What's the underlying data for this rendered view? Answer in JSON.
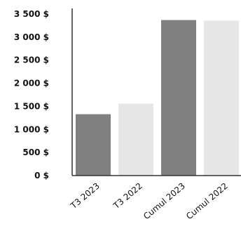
{
  "chart_data": {
    "type": "bar",
    "categories": [
      "T3 2023",
      "T3 2022",
      "Cumul 2023",
      "Cumul 2022"
    ],
    "values": [
      1330,
      1560,
      3370,
      3360
    ],
    "bar_colors": [
      "#808080",
      "#e6e6e6",
      "#808080",
      "#e6e6e6"
    ],
    "y_ticks": [
      0,
      500,
      1000,
      1500,
      2000,
      2500,
      3000,
      3500
    ],
    "y_tick_labels": [
      "0 $",
      "500 $",
      "1 000 $",
      "1 500 $",
      "2 000 $",
      "2 500 $",
      "3 000 $",
      "3 500 $"
    ],
    "ylim": [
      0,
      3500
    ],
    "title": "",
    "xlabel": "",
    "ylabel": "",
    "grid": false,
    "legend": "none",
    "axis_color": "#333333"
  }
}
